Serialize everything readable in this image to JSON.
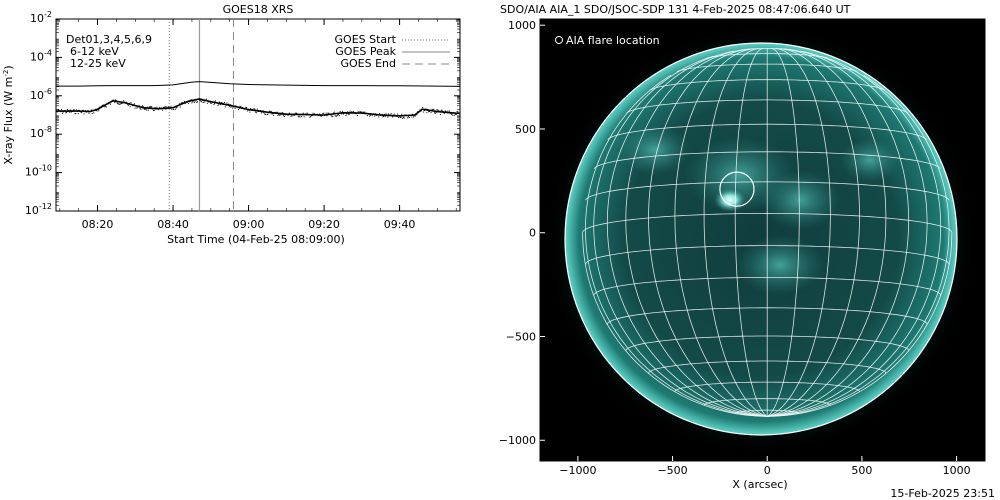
{
  "timestamp": "15-Feb-2025 23:51",
  "chart_data": [
    {
      "type": "line",
      "title": "GOES18 XRS",
      "xlabel": "Start Time (04-Feb-25 08:09:00)",
      "ylabel": "X-ray Flux (W m",
      "ylabel_sup": "-2",
      "yscale": "log",
      "ylim_exp": [
        -12,
        -2
      ],
      "y_tick_exponents": [
        -2,
        -4,
        -6,
        -8,
        -10,
        -12
      ],
      "xlim": [
        "08:09",
        "09:56"
      ],
      "x_ticks": [
        "08:20",
        "08:40",
        "09:00",
        "09:20",
        "09:40"
      ],
      "legend_left": {
        "detectors": "Det01,3,4,5,6,9",
        "band1": "6-12 keV",
        "band1_color": "#ff00ff",
        "band2": "12-25 keV",
        "band2_color": "#00ff00"
      },
      "legend_right": [
        {
          "name": "GOES Start",
          "style": "dotted"
        },
        {
          "name": "GOES Peak",
          "style": "solid"
        },
        {
          "name": "GOES End",
          "style": "dashed"
        }
      ],
      "event_lines": {
        "start": "08:39",
        "peak": "08:47",
        "end": "08:56"
      },
      "series": [
        {
          "band": "long",
          "x": [
            "08:09",
            "08:15",
            "08:20",
            "08:25",
            "08:30",
            "08:35",
            "08:40",
            "08:45",
            "08:47",
            "08:50",
            "08:55",
            "09:00",
            "09:10",
            "09:20",
            "09:30",
            "09:40",
            "09:50",
            "09:56"
          ],
          "y": [
            3.2e-06,
            3.2e-06,
            3.3e-06,
            3.4e-06,
            3.4e-06,
            3.4e-06,
            3.7e-06,
            5.2e-06,
            5.5e-06,
            5e-06,
            4.2e-06,
            3.9e-06,
            3.6e-06,
            3.4e-06,
            3.4e-06,
            3.3e-06,
            3.2e-06,
            3.1e-06
          ]
        },
        {
          "band": "short",
          "x": [
            "08:09",
            "08:15",
            "08:18",
            "08:20",
            "08:24",
            "08:27",
            "08:32",
            "08:36",
            "08:40",
            "08:44",
            "08:47",
            "08:50",
            "08:55",
            "09:00",
            "09:05",
            "09:10",
            "09:15",
            "09:20",
            "09:25",
            "09:30",
            "09:35",
            "09:40",
            "09:44",
            "09:46",
            "09:50",
            "09:56"
          ],
          "y": [
            1.6e-07,
            1.6e-07,
            1.5e-07,
            2e-07,
            5.5e-07,
            4.5e-07,
            2.4e-07,
            2.1e-07,
            2.4e-07,
            5.2e-07,
            6.8e-07,
            5e-07,
            3.2e-07,
            1.9e-07,
            1.4e-07,
            1.1e-07,
            1.05e-07,
            1e-07,
            1.3e-07,
            1.25e-07,
            1e-07,
            9e-08,
            1e-07,
            2e-07,
            1.5e-07,
            1.2e-07
          ]
        }
      ]
    },
    {
      "type": "image",
      "title": "SDO/AIA AIA_1 SDO/JSOC-SDP 131  4-Feb-2025 08:47:06.640 UT",
      "legend": "AIA flare location",
      "xlabel": "X (arcsec)",
      "x_ticks": [
        -1000,
        -500,
        0,
        500,
        1000
      ],
      "y_ticks": [
        1000,
        500,
        0,
        -500,
        -1000
      ],
      "xlim": [
        -1200,
        1150
      ],
      "ylim": [
        -1100,
        1030
      ],
      "solar_radius_arcsec": 975,
      "grid_spacing_deg": 10,
      "disk_color": "#1a6b66",
      "flare_location": {
        "x": -160,
        "y": 210,
        "radius": 90
      }
    }
  ]
}
